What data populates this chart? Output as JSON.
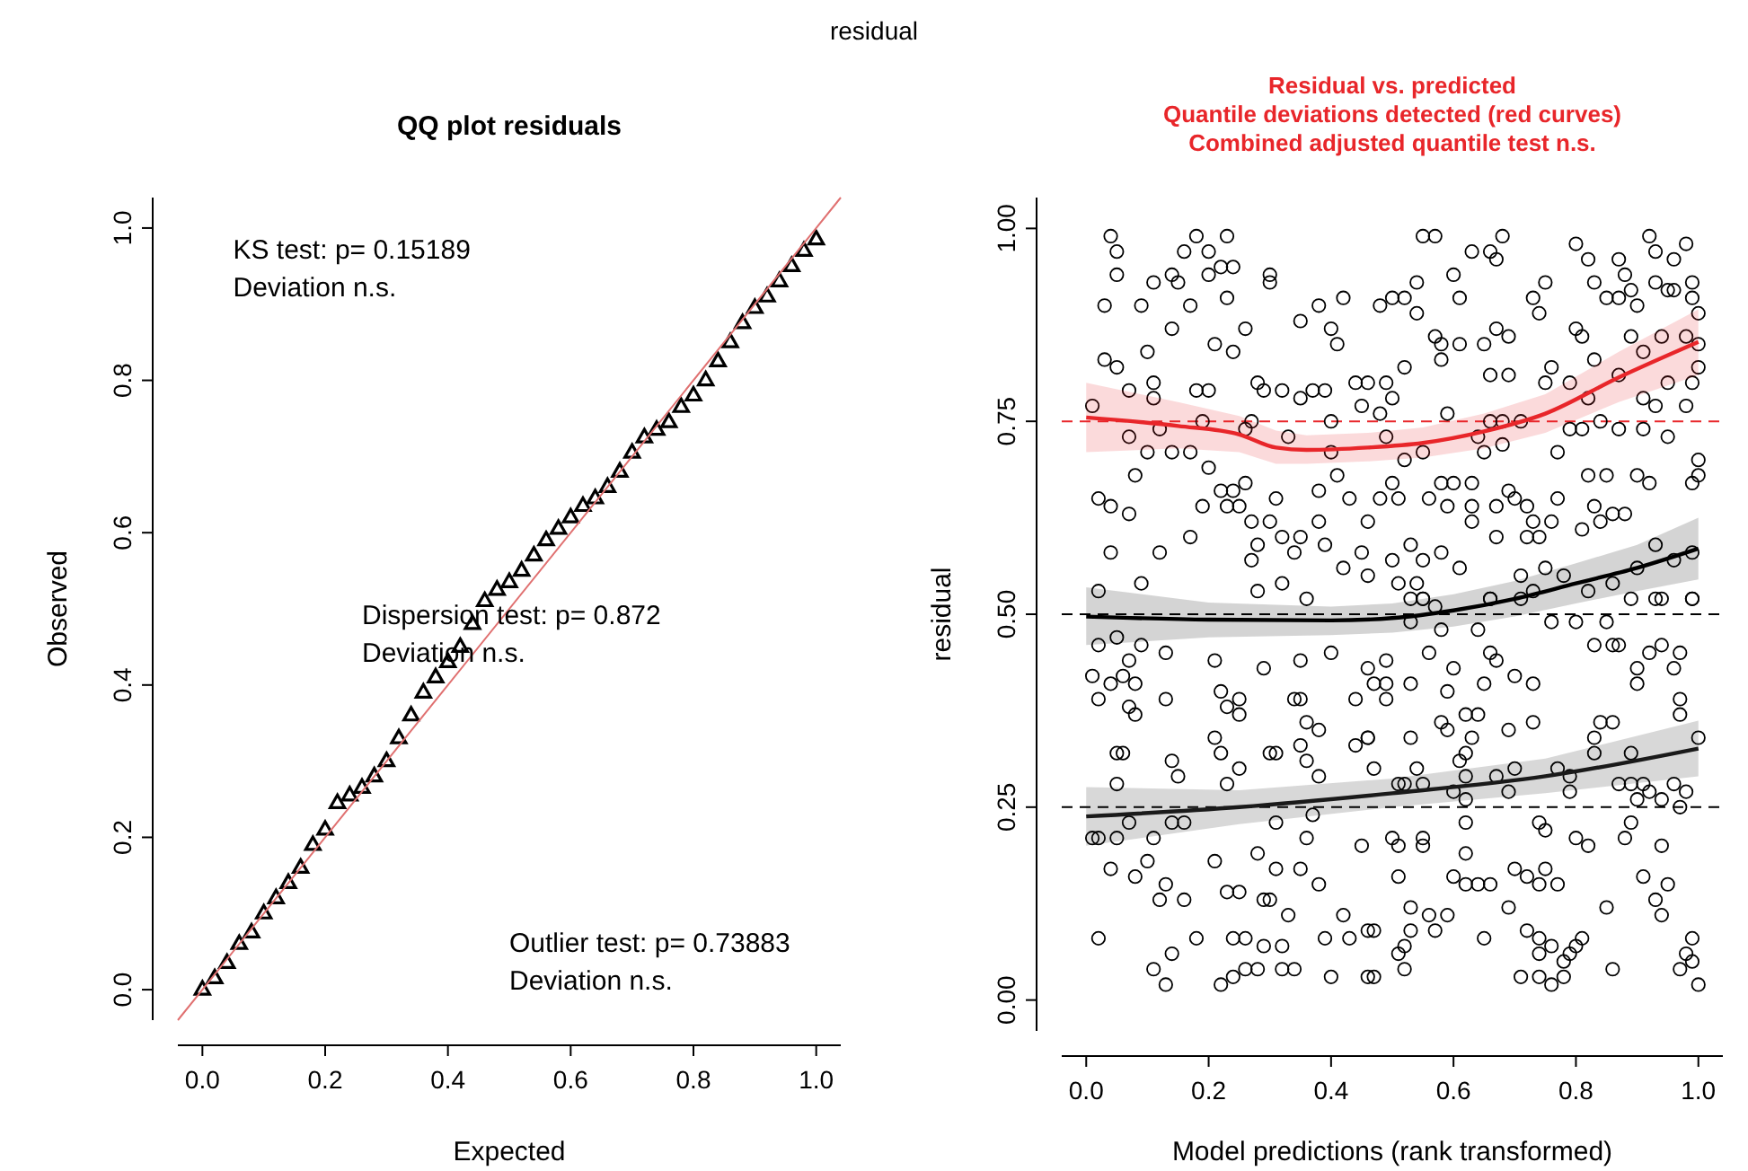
{
  "chart_data": [
    {
      "type": "scatter",
      "title": "QQ plot residuals",
      "xlabel": "Expected",
      "ylabel": "Observed",
      "xlim": [
        -0.04,
        1.04
      ],
      "ylim": [
        -0.04,
        1.04
      ],
      "xticks": [
        {
          "value": 0,
          "label": "0.0"
        },
        {
          "value": 0.2,
          "label": "0.2"
        },
        {
          "value": 0.4,
          "label": "0.4"
        },
        {
          "value": 0.6,
          "label": "0.6"
        },
        {
          "value": 0.8,
          "label": "0.8"
        },
        {
          "value": 1,
          "label": "1.0"
        }
      ],
      "yticks": [
        {
          "value": 0,
          "label": "0.0"
        },
        {
          "value": 0.2,
          "label": "0.2"
        },
        {
          "value": 0.4,
          "label": "0.4"
        },
        {
          "value": 0.6,
          "label": "0.6"
        },
        {
          "value": 0.8,
          "label": "0.8"
        },
        {
          "value": 1,
          "label": "1.0"
        }
      ],
      "grid": false,
      "annotations": [
        "KS test: p= 0.15189\nDeviation  n.s.",
        "Dispersion test: p= 0.872\nDeviation  n.s.",
        "Outlier test: p= 0.73883\nDeviation  n.s.",
        "residual"
      ],
      "series": [
        {
          "marker": "triangle",
          "color": "#000000",
          "x": [
            0,
            0.02,
            0.04,
            0.06,
            0.08,
            0.1,
            0.12,
            0.14,
            0.16,
            0.18,
            0.2,
            0.22,
            0.24,
            0.26,
            0.28,
            0.3,
            0.32,
            0.34,
            0.36,
            0.38,
            0.4,
            0.42,
            0.44,
            0.46,
            0.48,
            0.5,
            0.52,
            0.54,
            0.56,
            0.58,
            0.6,
            0.62,
            0.64,
            0.66,
            0.68,
            0.7,
            0.72,
            0.74,
            0.76,
            0.78,
            0.8,
            0.82,
            0.84,
            0.86,
            0.88,
            0.9,
            0.92,
            0.94,
            0.96,
            0.98,
            1.0
          ],
          "values": [
            0.0,
            0.015,
            0.035,
            0.06,
            0.075,
            0.1,
            0.12,
            0.14,
            0.16,
            0.19,
            0.21,
            0.245,
            0.255,
            0.265,
            0.28,
            0.3,
            0.33,
            0.36,
            0.39,
            0.41,
            0.43,
            0.45,
            0.48,
            0.51,
            0.525,
            0.535,
            0.55,
            0.57,
            0.59,
            0.605,
            0.62,
            0.635,
            0.645,
            0.66,
            0.68,
            0.705,
            0.725,
            0.735,
            0.745,
            0.765,
            0.78,
            0.8,
            0.825,
            0.85,
            0.875,
            0.895,
            0.91,
            0.93,
            0.95,
            0.97,
            0.985
          ]
        },
        {
          "type": "line",
          "marker": "none",
          "color": "#e07070",
          "x": [
            -0.04,
            1.04
          ],
          "values": [
            -0.04,
            1.04
          ]
        }
      ]
    },
    {
      "type": "scatter",
      "title": "Residual vs. predicted\nQuantile deviations detected (red curves)\nCombined adjusted quantile test n.s.",
      "xlabel": "Model predictions (rank transformed)",
      "ylabel": "residual",
      "xlim": [
        -0.04,
        1.04
      ],
      "ylim": [
        -0.04,
        1.04
      ],
      "xticks": [
        {
          "value": 0,
          "label": "0.0"
        },
        {
          "value": 0.2,
          "label": "0.2"
        },
        {
          "value": 0.4,
          "label": "0.4"
        },
        {
          "value": 0.6,
          "label": "0.6"
        },
        {
          "value": 0.8,
          "label": "0.8"
        },
        {
          "value": 1,
          "label": "1.0"
        }
      ],
      "yticks": [
        {
          "value": 0,
          "label": "0.00"
        },
        {
          "value": 0.25,
          "label": "0.25"
        },
        {
          "value": 0.5,
          "label": "0.50"
        },
        {
          "value": 0.75,
          "label": "0.75"
        },
        {
          "value": 1,
          "label": "1.00"
        }
      ],
      "grid": false,
      "ref_lines": [
        {
          "axis": "y",
          "value": 0.25,
          "color": "#000000",
          "line_style": "dashed"
        },
        {
          "axis": "y",
          "value": 0.5,
          "color": "#000000",
          "line_style": "dashed"
        },
        {
          "axis": "y",
          "value": 0.75,
          "color": "#e8262a",
          "line_style": "dashed"
        }
      ],
      "series": [
        {
          "marker": "circle",
          "color": "#000000",
          "x": [
            0.04,
            0.05,
            0.05,
            0.03,
            0.09,
            0.11,
            0.14,
            0.15,
            0.16,
            0.18,
            0.2,
            0.2,
            0.22,
            0.24,
            0.23,
            0.17,
            0.23,
            0.14,
            0.1,
            0.21,
            0.24,
            0.26,
            0.3,
            0.3,
            0.35,
            0.38,
            0.42,
            0.4,
            0.41,
            0.03,
            0.05,
            0.07,
            0.11,
            0.11,
            0.18,
            0.2,
            0.28,
            0.29,
            0.32,
            0.35,
            0.37,
            0.39,
            0.44,
            0.46,
            0.45,
            0.01,
            0.07,
            0.1,
            0.12,
            0.14,
            0.17,
            0.19,
            0.26,
            0.27,
            0.33,
            0.4,
            0.4,
            0.08,
            0.2,
            0.22,
            0.24,
            0.26,
            0.31,
            0.02,
            0.04,
            0.07,
            0.19,
            0.23,
            0.25,
            0.27,
            0.3,
            0.38,
            0.41,
            0.43,
            0.46,
            0.38,
            0.39,
            0.35,
            0.32,
            0.28,
            0.27,
            0.34,
            0.42,
            0.46,
            0.45,
            0.04,
            0.12,
            0.17,
            0.02,
            0.09,
            0.28,
            0.32,
            0.36,
            0.02,
            0.05,
            0.09,
            0.13,
            0.21,
            0.29,
            0.35,
            0.4,
            0.07,
            0.01,
            0.04,
            0.06,
            0.08,
            0.02,
            0.07,
            0.08,
            0.13,
            0.22,
            0.23,
            0.25,
            0.25,
            0.34,
            0.35,
            0.36,
            0.38,
            0.44,
            0.46,
            0.44,
            0.05,
            0.06,
            0.14,
            0.15,
            0.21,
            0.22,
            0.25,
            0.23,
            0.3,
            0.31,
            0.35,
            0.36,
            0.38,
            0.05,
            0.01,
            0.02,
            0.05,
            0.07,
            0.11,
            0.14,
            0.16,
            0.31,
            0.36,
            0.37,
            0.45,
            0.04,
            0.08,
            0.1,
            0.13,
            0.12,
            0.16,
            0.21,
            0.23,
            0.25,
            0.28,
            0.29,
            0.3,
            0.33,
            0.31,
            0.35,
            0.38,
            0.42,
            0.02,
            0.18,
            0.24,
            0.26,
            0.29,
            0.32,
            0.39,
            0.43,
            0.46,
            0.14,
            0.11,
            0.13,
            0.22,
            0.24,
            0.26,
            0.28,
            0.32,
            0.34,
            0.4,
            0.46,
            0.55,
            0.57,
            0.66,
            0.68,
            0.67,
            0.63,
            0.6,
            0.54,
            0.5,
            0.52,
            0.48,
            0.54,
            0.61,
            0.57,
            0.58,
            0.61,
            0.58,
            0.52,
            0.65,
            0.67,
            0.69,
            0.8,
            0.82,
            0.87,
            0.88,
            0.83,
            0.85,
            0.87,
            0.89,
            0.9,
            0.92,
            0.93,
            0.96,
            0.98,
            0.93,
            0.95,
            0.96,
            0.99,
            0.99,
            1.0,
            0.73,
            0.75,
            0.74,
            0.8,
            0.81,
            0.83,
            0.89,
            0.91,
            0.94,
            0.98,
            1.0,
            0.99,
            1.0,
            0.69,
            0.66,
            0.76,
            0.75,
            0.79,
            0.82,
            0.87,
            0.95,
            0.98,
            0.91,
            0.93,
            0.59,
            0.66,
            0.68,
            0.71,
            0.64,
            0.65,
            0.68,
            0.79,
            0.81,
            0.84,
            0.87,
            0.91,
            0.95,
            0.77,
            0.49,
            0.5,
            0.48,
            0.49,
            0.52,
            0.55,
            0.5,
            0.48,
            0.51,
            0.56,
            0.58,
            0.6,
            0.63,
            0.59,
            0.63,
            0.69,
            0.7,
            0.72,
            0.67,
            0.77,
            0.76,
            0.73,
            0.82,
            0.85,
            0.9,
            0.92,
            0.99,
            1.0,
            1.0,
            0.83,
            0.88,
            0.86,
            0.84,
            0.81,
            0.74,
            0.72,
            0.67,
            0.63,
            0.61,
            0.58,
            0.53,
            0.55,
            0.5,
            0.51,
            0.54,
            0.55,
            0.66,
            0.71,
            0.73,
            0.75,
            0.78,
            0.82,
            0.86,
            0.9,
            0.96,
            0.99,
            0.93,
            0.93,
            0.99,
            0.53,
            0.55,
            0.57,
            0.66,
            0.71,
            0.53,
            0.76,
            0.8,
            0.85,
            0.83,
            0.86,
            0.87,
            0.92,
            0.94,
            0.97,
            0.96,
            0.9,
            0.9,
            0.99,
            0.89,
            0.94,
            0.56,
            0.58,
            0.64,
            0.66,
            0.67,
            0.49,
            0.46,
            0.47,
            0.49,
            0.49,
            0.53,
            0.6,
            0.59,
            0.65,
            0.7,
            0.73,
            0.97,
            0.97,
            1.0,
            0.73,
            0.69,
            0.58,
            0.59,
            0.62,
            0.64,
            0.63,
            0.53,
            0.46,
            0.62,
            0.61,
            0.54,
            0.47,
            0.51,
            0.52,
            0.55,
            0.62,
            0.67,
            0.7,
            0.69,
            0.77,
            0.79,
            0.83,
            0.83,
            0.84,
            0.86,
            0.89,
            0.87,
            0.89,
            0.91,
            0.92,
            0.96,
            0.98,
            0.9,
            0.94,
            0.97,
            0.79,
            0.6,
            0.62,
            0.62,
            0.74,
            0.75,
            0.8,
            0.82,
            0.88,
            0.89,
            0.94,
            0.5,
            0.51,
            0.55,
            0.55,
            0.62,
            0.51,
            0.6,
            0.62,
            0.64,
            0.66,
            0.7,
            0.72,
            0.75,
            0.74,
            0.77,
            0.69,
            0.85,
            0.91,
            0.93,
            0.95,
            0.94,
            0.47,
            0.53,
            0.56,
            0.59,
            0.57,
            0.53,
            0.52,
            0.51,
            0.65,
            0.72,
            0.74,
            0.76,
            0.79,
            0.81,
            0.8,
            0.74,
            0.78,
            0.47,
            0.52,
            0.71,
            0.74,
            0.76,
            0.78,
            0.86,
            0.97,
            0.98,
            0.99,
            0.99,
            1.0
          ],
          "values": [
            0.99,
            0.97,
            0.94,
            0.9,
            0.9,
            0.93,
            0.94,
            0.93,
            0.97,
            0.99,
            0.97,
            0.94,
            0.95,
            0.95,
            0.99,
            0.9,
            0.91,
            0.87,
            0.84,
            0.85,
            0.84,
            0.87,
            0.94,
            0.93,
            0.88,
            0.9,
            0.91,
            0.87,
            0.85,
            0.83,
            0.82,
            0.79,
            0.8,
            0.78,
            0.79,
            0.79,
            0.8,
            0.79,
            0.79,
            0.78,
            0.79,
            0.79,
            0.8,
            0.8,
            0.77,
            0.77,
            0.73,
            0.71,
            0.74,
            0.71,
            0.71,
            0.75,
            0.74,
            0.75,
            0.73,
            0.75,
            0.71,
            0.68,
            0.69,
            0.66,
            0.66,
            0.67,
            0.65,
            0.65,
            0.64,
            0.63,
            0.64,
            0.64,
            0.64,
            0.62,
            0.62,
            0.66,
            0.68,
            0.65,
            0.62,
            0.62,
            0.59,
            0.6,
            0.6,
            0.59,
            0.57,
            0.58,
            0.56,
            0.55,
            0.58,
            0.58,
            0.58,
            0.6,
            0.53,
            0.54,
            0.53,
            0.54,
            0.52,
            0.46,
            0.47,
            0.46,
            0.45,
            0.44,
            0.43,
            0.44,
            0.45,
            0.44,
            0.42,
            0.41,
            0.42,
            0.41,
            0.39,
            0.38,
            0.37,
            0.39,
            0.4,
            0.38,
            0.39,
            0.37,
            0.39,
            0.39,
            0.36,
            0.35,
            0.39,
            0.34,
            0.33,
            0.32,
            0.32,
            0.31,
            0.29,
            0.34,
            0.32,
            0.3,
            0.28,
            0.32,
            0.32,
            0.33,
            0.31,
            0.29,
            0.28,
            0.21,
            0.21,
            0.21,
            0.23,
            0.21,
            0.23,
            0.23,
            0.23,
            0.21,
            0.24,
            0.2,
            0.17,
            0.16,
            0.18,
            0.15,
            0.13,
            0.13,
            0.18,
            0.14,
            0.14,
            0.19,
            0.13,
            0.13,
            0.11,
            0.17,
            0.17,
            0.15,
            0.11,
            0.08,
            0.08,
            0.08,
            0.08,
            0.07,
            0.07,
            0.08,
            0.08,
            0.09,
            0.06,
            0.04,
            0.02,
            0.02,
            0.03,
            0.04,
            0.04,
            0.04,
            0.04,
            0.03,
            0.03,
            0.99,
            0.99,
            0.97,
            0.99,
            0.96,
            0.97,
            0.94,
            0.93,
            0.91,
            0.91,
            0.9,
            0.89,
            0.91,
            0.86,
            0.85,
            0.85,
            0.83,
            0.82,
            0.85,
            0.87,
            0.86,
            0.98,
            0.96,
            0.96,
            0.94,
            0.93,
            0.91,
            0.91,
            0.92,
            0.9,
            0.99,
            0.97,
            0.96,
            0.98,
            0.93,
            0.92,
            0.92,
            0.91,
            0.93,
            0.89,
            0.91,
            0.93,
            0.89,
            0.87,
            0.86,
            0.83,
            0.86,
            0.84,
            0.86,
            0.86,
            0.82,
            0.8,
            0.85,
            0.81,
            0.81,
            0.82,
            0.8,
            0.8,
            0.78,
            0.81,
            0.8,
            0.77,
            0.78,
            0.77,
            0.76,
            0.75,
            0.75,
            0.75,
            0.73,
            0.71,
            0.72,
            0.74,
            0.74,
            0.75,
            0.74,
            0.74,
            0.73,
            0.71,
            0.8,
            0.78,
            0.76,
            0.73,
            0.7,
            0.71,
            0.67,
            0.65,
            0.65,
            0.65,
            0.67,
            0.67,
            0.67,
            0.64,
            0.64,
            0.66,
            0.65,
            0.64,
            0.64,
            0.65,
            0.62,
            0.62,
            0.68,
            0.68,
            0.68,
            0.67,
            0.67,
            0.68,
            0.7,
            0.64,
            0.63,
            0.63,
            0.62,
            0.61,
            0.6,
            0.6,
            0.6,
            0.62,
            0.56,
            0.58,
            0.59,
            0.57,
            0.57,
            0.54,
            0.54,
            0.52,
            0.52,
            0.55,
            0.53,
            0.56,
            0.55,
            0.53,
            0.54,
            0.56,
            0.57,
            0.58,
            0.59,
            0.52,
            0.52,
            0.52,
            0.52,
            0.51,
            0.52,
            0.52,
            0.49,
            0.49,
            0.49,
            0.49,
            0.46,
            0.46,
            0.46,
            0.45,
            0.46,
            0.45,
            0.43,
            0.43,
            0.41,
            0.52,
            0.52,
            0.52,
            0.45,
            0.48,
            0.48,
            0.45,
            0.44,
            0.44,
            0.43,
            0.41,
            0.41,
            0.39,
            0.41,
            0.43,
            0.4,
            0.41,
            0.42,
            0.41,
            0.39,
            0.37,
            0.34,
            0.36,
            0.35,
            0.36,
            0.35,
            0.37,
            0.37,
            0.34,
            0.34,
            0.34,
            0.32,
            0.31,
            0.3,
            0.3,
            0.28,
            0.28,
            0.28,
            0.29,
            0.29,
            0.3,
            0.27,
            0.3,
            0.29,
            0.32,
            0.34,
            0.36,
            0.36,
            0.32,
            0.28,
            0.28,
            0.28,
            0.27,
            0.28,
            0.27,
            0.26,
            0.26,
            0.25,
            0.27,
            0.27,
            0.26,
            0.23,
            0.23,
            0.22,
            0.21,
            0.2,
            0.21,
            0.23,
            0.2,
            0.21,
            0.2,
            0.21,
            0.2,
            0.19,
            0.16,
            0.16,
            0.15,
            0.15,
            0.15,
            0.17,
            0.16,
            0.17,
            0.15,
            0.15,
            0.12,
            0.12,
            0.16,
            0.13,
            0.15,
            0.11,
            0.09,
            0.12,
            0.11,
            0.11,
            0.09,
            0.09,
            0.07,
            0.06,
            0.08,
            0.09,
            0.08,
            0.07,
            0.06,
            0.08,
            0.07,
            0.06,
            0.05,
            0.03,
            0.04,
            0.03,
            0.03,
            0.02,
            0.03,
            0.04,
            0.04,
            0.06,
            0.05,
            0.08,
            0.02
          ]
        },
        {
          "type": "line",
          "marker": "none",
          "color": "#e8262a",
          "x": [
            0,
            0.15,
            0.25,
            0.31,
            0.36,
            0.46,
            0.55,
            0.65,
            0.75,
            0.87,
            1.0
          ],
          "values": [
            0.755,
            0.744,
            0.733,
            0.716,
            0.713,
            0.716,
            0.722,
            0.737,
            0.76,
            0.807,
            0.853
          ],
          "lower": [
            0.71,
            0.715,
            0.71,
            0.695,
            0.695,
            0.698,
            0.703,
            0.715,
            0.735,
            0.775,
            0.81
          ],
          "upper": [
            0.8,
            0.775,
            0.757,
            0.738,
            0.732,
            0.735,
            0.742,
            0.76,
            0.785,
            0.84,
            0.895
          ]
        },
        {
          "type": "line",
          "marker": "none",
          "color": "#000000",
          "x": [
            0,
            0.2,
            0.4,
            0.5,
            0.6,
            0.7,
            0.8,
            0.9,
            1.0
          ],
          "values": [
            0.497,
            0.493,
            0.492,
            0.495,
            0.505,
            0.52,
            0.54,
            0.56,
            0.585
          ],
          "lower": [
            0.46,
            0.47,
            0.473,
            0.476,
            0.484,
            0.497,
            0.514,
            0.53,
            0.545
          ],
          "upper": [
            0.535,
            0.515,
            0.51,
            0.514,
            0.526,
            0.543,
            0.566,
            0.59,
            0.625
          ]
        },
        {
          "type": "line",
          "marker": "none",
          "color": "#1a1a1a",
          "x": [
            0,
            0.25,
            0.5,
            0.75,
            1.0
          ],
          "values": [
            0.238,
            0.25,
            0.268,
            0.29,
            0.326
          ],
          "lower": [
            0.2,
            0.228,
            0.25,
            0.268,
            0.29
          ],
          "upper": [
            0.276,
            0.272,
            0.287,
            0.313,
            0.362
          ]
        }
      ]
    }
  ]
}
